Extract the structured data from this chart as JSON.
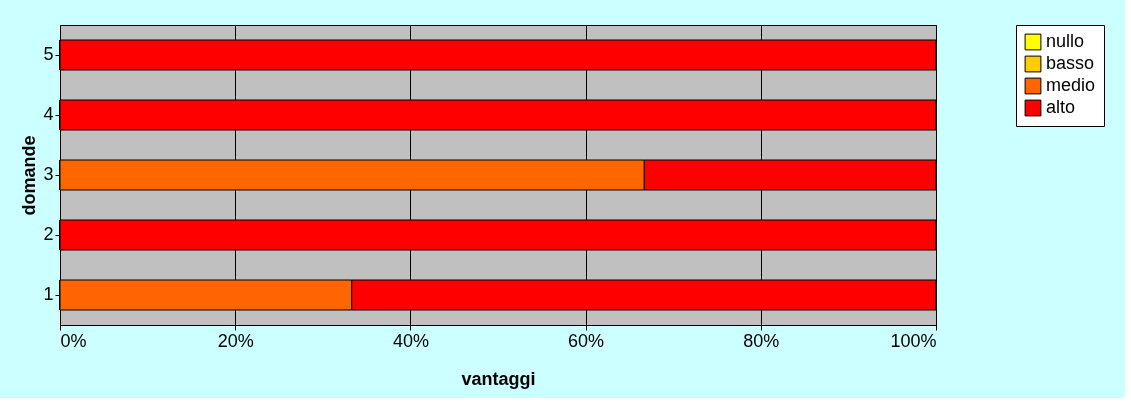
{
  "chart_data": {
    "type": "bar",
    "orientation": "horizontal",
    "stacked": true,
    "categories": [
      "5",
      "4",
      "3",
      "2",
      "1"
    ],
    "series": [
      {
        "name": "nullo",
        "color": "#ffff00",
        "values": [
          0,
          0,
          0,
          0,
          0
        ]
      },
      {
        "name": "basso",
        "color": "#ffcc00",
        "values": [
          0,
          0,
          0,
          0,
          0
        ]
      },
      {
        "name": "medio",
        "color": "#ff6600",
        "values": [
          0,
          0,
          66.7,
          0,
          33.3
        ]
      },
      {
        "name": "alto",
        "color": "#ff0000",
        "values": [
          100,
          100,
          33.3,
          100,
          66.7
        ]
      }
    ],
    "xlim": [
      0,
      100
    ],
    "xticks": [
      {
        "value": 0,
        "label": "0%"
      },
      {
        "value": 20,
        "label": "20%"
      },
      {
        "value": 40,
        "label": "40%"
      },
      {
        "value": 60,
        "label": "60%"
      },
      {
        "value": 80,
        "label": "80%"
      },
      {
        "value": 100,
        "label": "100%"
      }
    ],
    "xlabel": "vantaggi",
    "ylabel": "domande",
    "grid": "x",
    "legend": "right"
  }
}
